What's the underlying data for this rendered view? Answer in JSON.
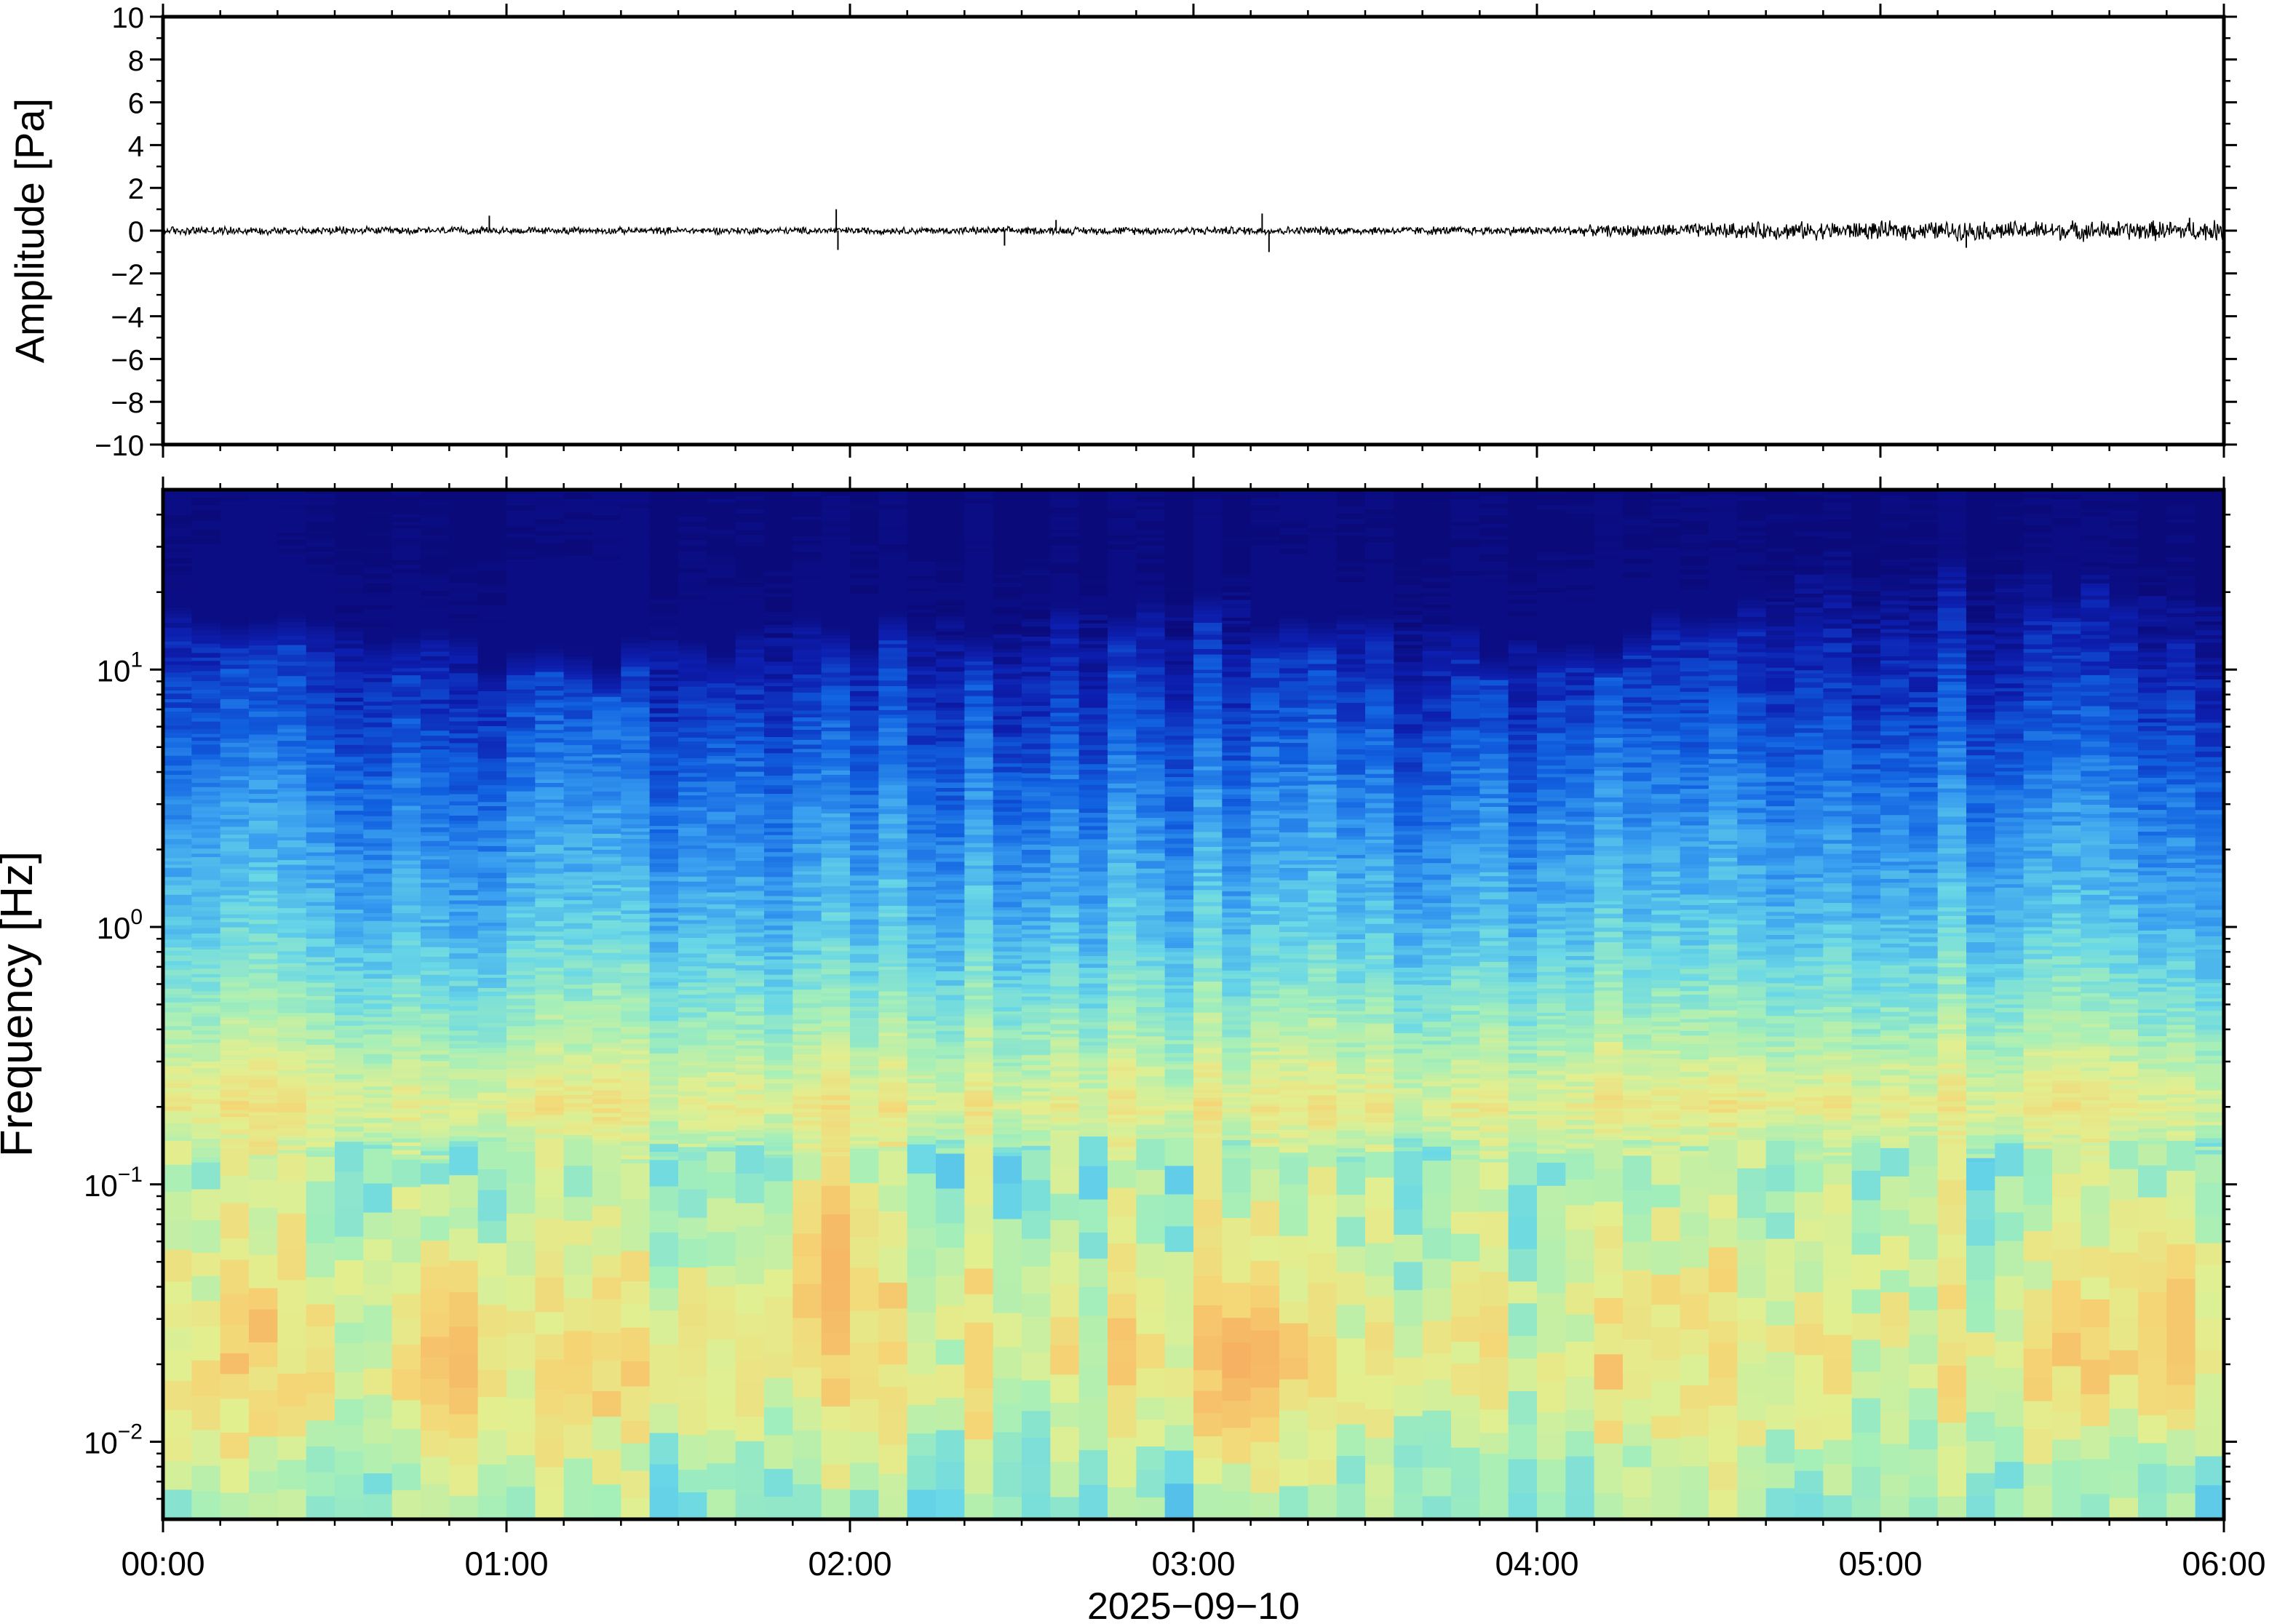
{
  "chart_data": [
    {
      "type": "line",
      "ylabel": "Amplitude [Pa]",
      "ylim": [
        -10,
        10
      ],
      "yticks": [
        -10,
        -8,
        -6,
        -4,
        -2,
        0,
        2,
        4,
        6,
        8,
        10
      ],
      "ytick_labels": [
        "−10",
        "−8",
        "−6",
        "−4",
        "−2",
        "0",
        "2",
        "4",
        "6",
        "8",
        "10"
      ],
      "xlim_hours": [
        0,
        6
      ],
      "baseline": 0,
      "noise_level_by_hour": [
        [
          0,
          0.15
        ],
        [
          1,
          0.12
        ],
        [
          2,
          0.12
        ],
        [
          3,
          0.14
        ],
        [
          4,
          0.15
        ],
        [
          4.7,
          0.3
        ],
        [
          6,
          0.35
        ]
      ],
      "spikes": [
        {
          "t": 0.95,
          "v": 0.7
        },
        {
          "t": 1.96,
          "v": 1.0
        },
        {
          "t": 1.965,
          "v": -0.9
        },
        {
          "t": 2.45,
          "v": -0.7
        },
        {
          "t": 2.6,
          "v": 0.5
        },
        {
          "t": 3.2,
          "v": 0.8
        },
        {
          "t": 3.22,
          "v": -1.0
        },
        {
          "t": 5.25,
          "v": -0.8
        },
        {
          "t": 5.9,
          "v": 0.6
        }
      ],
      "grid": false,
      "line_color": "#000000"
    },
    {
      "type": "heatmap",
      "ylabel": "Frequency [Hz]",
      "yscale": "log",
      "ylim": [
        0.005,
        50
      ],
      "yticks": [
        0.01,
        0.1,
        1,
        10
      ],
      "ytick_labels": [
        {
          "base": "10",
          "exp": "−2"
        },
        {
          "base": "10",
          "exp": "−1"
        },
        {
          "base": "10",
          "exp": "0"
        },
        {
          "base": "10",
          "exp": "1"
        }
      ],
      "xlim_hours": [
        0,
        6
      ],
      "xticks_hours": [
        0,
        1,
        2,
        3,
        4,
        5,
        6
      ],
      "xtick_labels": [
        "00:00",
        "01:00",
        "02:00",
        "03:00",
        "04:00",
        "05:00",
        "06:00"
      ],
      "xlabel": "2025−09−10",
      "colormap": "jet",
      "colormap_stops": [
        "#0a0a7a",
        "#0d1fb0",
        "#1060e0",
        "#3aa0f0",
        "#6ad8e6",
        "#a6efb8",
        "#e2ef90",
        "#f5d575",
        "#f7a45a"
      ],
      "upper_edge_freq_hz_by_hour": [
        [
          0,
          14
        ],
        [
          0.5,
          12
        ],
        [
          1,
          9
        ],
        [
          1.5,
          10
        ],
        [
          2,
          11
        ],
        [
          2.5,
          13
        ],
        [
          3,
          15
        ],
        [
          3.5,
          12
        ],
        [
          4,
          10
        ],
        [
          4.5,
          12
        ],
        [
          4.8,
          22
        ],
        [
          5,
          20
        ],
        [
          5.5,
          18
        ],
        [
          6,
          17
        ]
      ],
      "band_levels": [
        {
          "f_hz": 30,
          "level": 0.0
        },
        {
          "f_hz": 10,
          "level": 0.15
        },
        {
          "f_hz": 3,
          "level": 0.32
        },
        {
          "f_hz": 1,
          "level": 0.45
        },
        {
          "f_hz": 0.4,
          "level": 0.62
        },
        {
          "f_hz": 0.2,
          "level": 0.78
        },
        {
          "f_hz": 0.12,
          "level": 0.62
        },
        {
          "f_hz": 0.05,
          "level": 0.72
        },
        {
          "f_hz": 0.02,
          "level": 0.8
        },
        {
          "f_hz": 0.006,
          "level": 0.62
        }
      ],
      "hot_spots": [
        {
          "t": 0.85,
          "f_hz": 0.02,
          "level": 0.95
        },
        {
          "t": 1.95,
          "f_hz": 0.05,
          "level": 0.95
        },
        {
          "t": 3.15,
          "f_hz": 0.02,
          "level": 0.97
        },
        {
          "t": 5.85,
          "f_hz": 0.03,
          "level": 0.92
        }
      ]
    }
  ]
}
